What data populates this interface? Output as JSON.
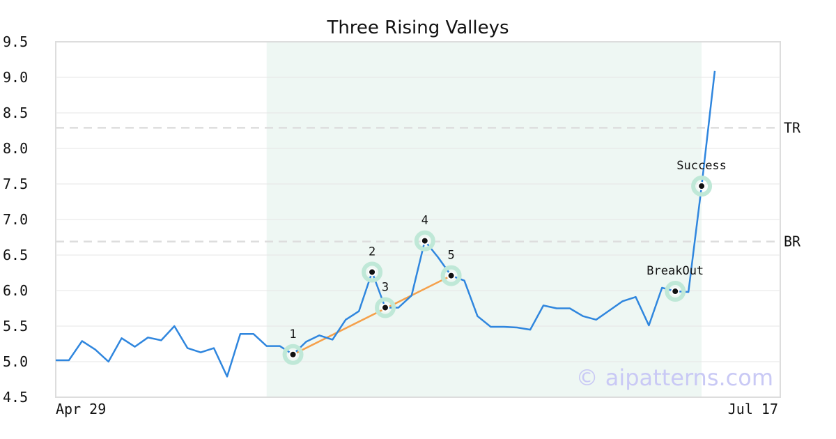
{
  "chart_data": {
    "type": "line",
    "title": "Three Rising Valleys",
    "xlabel": "",
    "ylabel": "",
    "ylim": [
      4.5,
      9.5
    ],
    "y_ticks": [
      "4.5",
      "5.0",
      "5.5",
      "6.0",
      "6.5",
      "7.0",
      "7.5",
      "8.0",
      "8.5",
      "9.0",
      "9.5"
    ],
    "x_tick_labels": [
      "Apr 29",
      "Jul 17"
    ],
    "grid": true,
    "series": [
      {
        "values": [
          5.02,
          5.02,
          5.29,
          5.17,
          5.0,
          5.33,
          5.21,
          5.34,
          5.3,
          5.5,
          5.19,
          5.13,
          5.19,
          4.79,
          5.39,
          5.39,
          5.22,
          5.22,
          5.1,
          5.28,
          5.37,
          5.31,
          5.59,
          5.71,
          6.26,
          5.76,
          5.76,
          5.93,
          6.7,
          6.47,
          6.21,
          6.14,
          5.64,
          5.49,
          5.49,
          5.48,
          5.45,
          5.79,
          5.75,
          5.75,
          5.64,
          5.59,
          5.72,
          5.85,
          5.91,
          5.51,
          6.04,
          5.99,
          5.98,
          7.47,
          9.09
        ],
        "color": "#2f86de"
      }
    ],
    "highlight_region": {
      "start_index": 16,
      "end_index": 49,
      "color": "#eef7f3"
    },
    "trend_line": {
      "from_index": 18,
      "from_value": 5.1,
      "to_index": 30,
      "to_value": 6.21,
      "color": "#f5a04a"
    },
    "reference_lines": [
      {
        "label": "TR",
        "value": 8.29
      },
      {
        "label": "BR",
        "value": 6.69
      }
    ],
    "annotations": [
      {
        "label": "1",
        "index": 18,
        "value": 5.1
      },
      {
        "label": "2",
        "index": 24,
        "value": 6.26
      },
      {
        "label": "3",
        "index": 25,
        "value": 5.76
      },
      {
        "label": "4",
        "index": 28,
        "value": 6.7
      },
      {
        "label": "5",
        "index": 30,
        "value": 6.21
      },
      {
        "label": "BreakOut",
        "index": 47,
        "value": 5.99
      },
      {
        "label": "Success",
        "index": 49,
        "value": 7.47
      }
    ],
    "watermark": "© aipatterns.com"
  }
}
